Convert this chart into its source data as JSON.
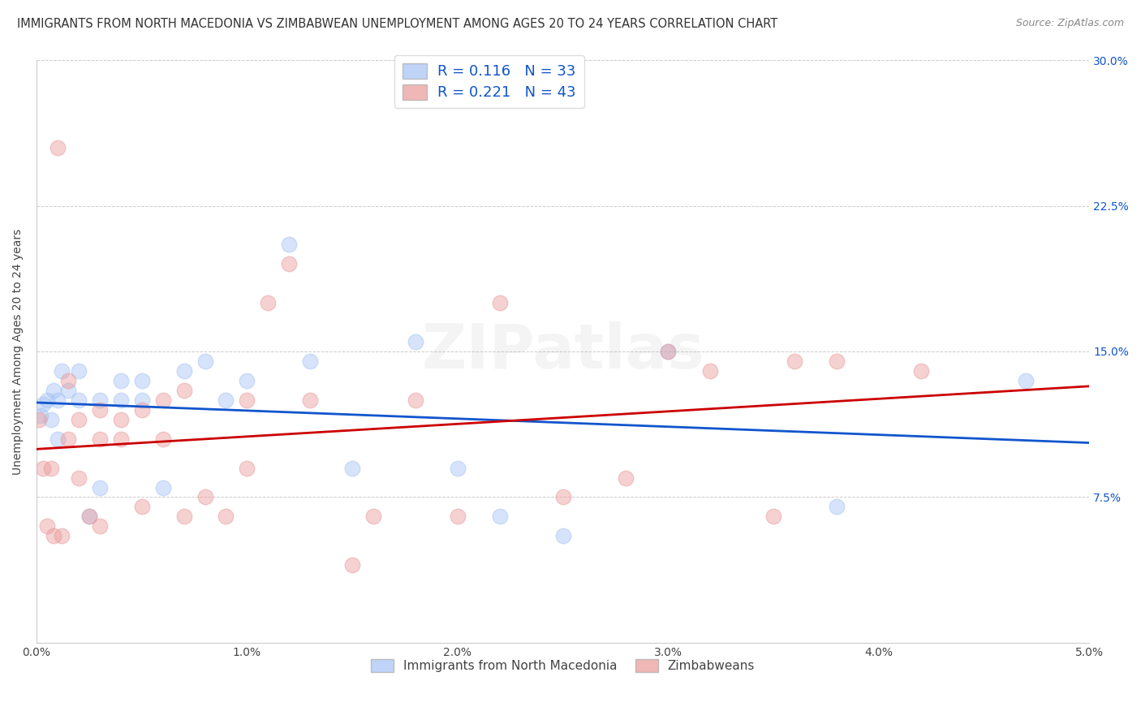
{
  "title": "IMMIGRANTS FROM NORTH MACEDONIA VS ZIMBABWEAN UNEMPLOYMENT AMONG AGES 20 TO 24 YEARS CORRELATION CHART",
  "source": "Source: ZipAtlas.com",
  "ylabel": "Unemployment Among Ages 20 to 24 years",
  "xlim": [
    0,
    0.05
  ],
  "ylim": [
    0,
    0.3
  ],
  "xticks": [
    0.0,
    0.01,
    0.02,
    0.03,
    0.04,
    0.05
  ],
  "xtick_labels": [
    "0.0%",
    "1.0%",
    "2.0%",
    "3.0%",
    "4.0%",
    "5.0%"
  ],
  "yticks": [
    0.0,
    0.075,
    0.15,
    0.225,
    0.3
  ],
  "ytick_labels_left": [
    "",
    "",
    "",
    "",
    ""
  ],
  "ytick_labels_right": [
    "",
    "7.5%",
    "15.0%",
    "22.5%",
    "30.0%"
  ],
  "blue_color": "#a4c2f4",
  "pink_color": "#ea9999",
  "blue_fill_color": "#6fa8dc",
  "pink_fill_color": "#e06666",
  "blue_line_color": "#1155cc",
  "pink_line_color": "#cc0000",
  "legend_R_blue": "0.116",
  "legend_N_blue": "33",
  "legend_R_pink": "0.221",
  "legend_N_pink": "43",
  "legend_label_blue": "Immigrants from North Macedonia",
  "legend_label_pink": "Zimbabweans",
  "blue_x": [
    0.0002,
    0.0003,
    0.0005,
    0.0007,
    0.0008,
    0.001,
    0.001,
    0.0012,
    0.0015,
    0.002,
    0.002,
    0.0025,
    0.003,
    0.003,
    0.004,
    0.004,
    0.005,
    0.005,
    0.006,
    0.007,
    0.008,
    0.009,
    0.01,
    0.012,
    0.013,
    0.015,
    0.018,
    0.02,
    0.022,
    0.025,
    0.03,
    0.038,
    0.047
  ],
  "blue_y": [
    0.117,
    0.123,
    0.125,
    0.115,
    0.13,
    0.125,
    0.105,
    0.14,
    0.13,
    0.125,
    0.14,
    0.065,
    0.125,
    0.08,
    0.135,
    0.125,
    0.135,
    0.125,
    0.08,
    0.14,
    0.145,
    0.125,
    0.135,
    0.205,
    0.145,
    0.09,
    0.155,
    0.09,
    0.065,
    0.055,
    0.15,
    0.07,
    0.135
  ],
  "pink_x": [
    0.0001,
    0.0003,
    0.0005,
    0.0007,
    0.0008,
    0.001,
    0.0012,
    0.0015,
    0.0015,
    0.002,
    0.002,
    0.0025,
    0.003,
    0.003,
    0.003,
    0.004,
    0.004,
    0.005,
    0.005,
    0.006,
    0.006,
    0.007,
    0.007,
    0.008,
    0.009,
    0.01,
    0.01,
    0.011,
    0.012,
    0.013,
    0.015,
    0.016,
    0.018,
    0.02,
    0.022,
    0.025,
    0.028,
    0.03,
    0.032,
    0.035,
    0.036,
    0.038,
    0.042
  ],
  "pink_y": [
    0.115,
    0.09,
    0.06,
    0.09,
    0.055,
    0.255,
    0.055,
    0.135,
    0.105,
    0.115,
    0.085,
    0.065,
    0.12,
    0.105,
    0.06,
    0.115,
    0.105,
    0.12,
    0.07,
    0.125,
    0.105,
    0.13,
    0.065,
    0.075,
    0.065,
    0.125,
    0.09,
    0.175,
    0.195,
    0.125,
    0.04,
    0.065,
    0.125,
    0.065,
    0.175,
    0.075,
    0.085,
    0.15,
    0.14,
    0.065,
    0.145,
    0.145,
    0.14
  ],
  "background_color": "#ffffff",
  "grid_color": "#cccccc",
  "title_fontsize": 10.5,
  "axis_label_fontsize": 10,
  "tick_fontsize": 10,
  "marker_size": 180,
  "marker_alpha": 0.45,
  "watermark_text": "ZIPatlas",
  "watermark_alpha": 0.12
}
